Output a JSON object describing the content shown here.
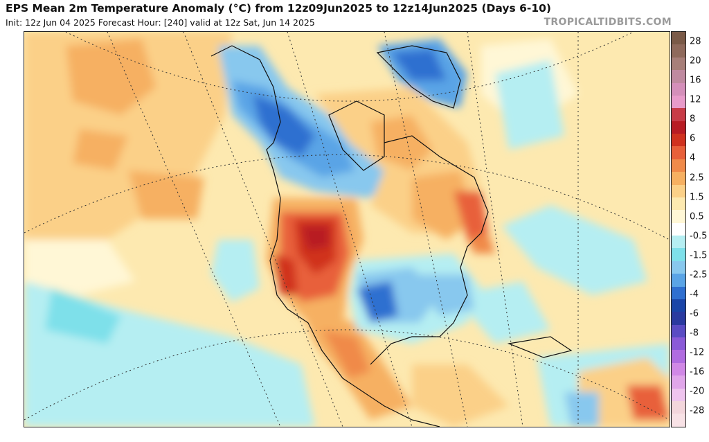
{
  "header": {
    "title": "EPS Mean 2m Temperature Anomaly (°C) from 12z09Jun2025 to 12z14Jun2025 (Days 6-10)",
    "subtitle": "Init: 12z Jun 04 2025   Forecast Hour: [240]   valid at 12z Sat, Jun 14 2025",
    "brand": "TROPICALTIDBITS.COM"
  },
  "map": {
    "region": "North America",
    "variable": "2m temperature anomaly",
    "units": "°C"
  },
  "colorbar": {
    "labels": [
      "28",
      "20",
      "16",
      "12",
      "8",
      "6",
      "4",
      "2.5",
      "1.5",
      "0.5",
      "-0.5",
      "-1.5",
      "-2.5",
      "-4",
      "-6",
      "-8",
      "-12",
      "-16",
      "-20",
      "-28"
    ],
    "colors": [
      "#7a5a48",
      "#8f6a5c",
      "#a77f79",
      "#bf8aa0",
      "#d48fba",
      "#e89bca",
      "#c83c48",
      "#b81c24",
      "#d0321f",
      "#e8603a",
      "#f08a4a",
      "#f6b062",
      "#fbd088",
      "#fde9b0",
      "#fff7d6",
      "#ffffff",
      "#b5eef2",
      "#7ee0ea",
      "#88c8ee",
      "#5aa4e6",
      "#2f6fd0",
      "#1a45a8",
      "#2a3aa0",
      "#5a4cc4",
      "#8a5ad8",
      "#b06ce0",
      "#d088e6",
      "#e0a6ea",
      "#eec4ee",
      "#f3d6dc",
      "#f8e2e6"
    ]
  }
}
